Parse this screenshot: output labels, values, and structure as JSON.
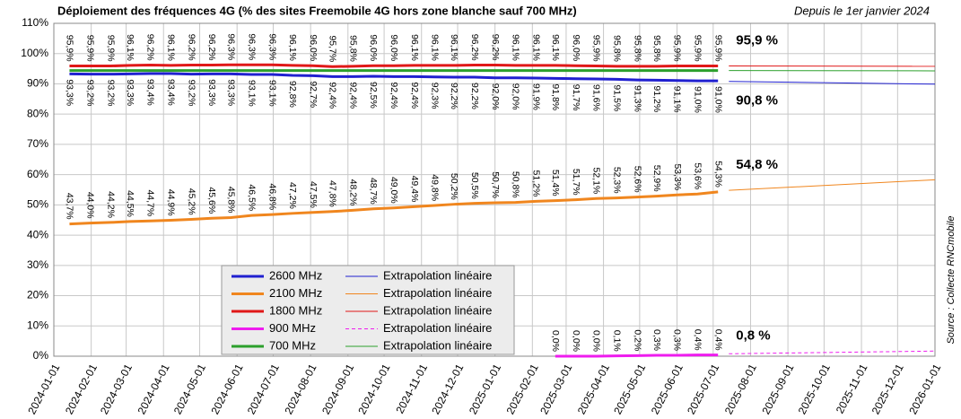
{
  "chart_data": {
    "type": "line",
    "title": "Déploiement des fréquences 4G (% des sites Freemobile 4G hors zone blanche sauf 700 MHz)",
    "subtitle": "Depuis le 1er janvier 2024",
    "source": "Source : Collecte RNCmobile",
    "grid": true,
    "xlim": [
      "2024-01-01",
      "2026-01-01"
    ],
    "xticks": [
      "2024-01-01",
      "2024-02-01",
      "2024-03-01",
      "2024-04-01",
      "2024-05-01",
      "2024-06-01",
      "2024-07-01",
      "2024-08-01",
      "2024-09-01",
      "2024-10-01",
      "2024-11-01",
      "2024-12-01",
      "2025-01-01",
      "2025-02-01",
      "2025-03-01",
      "2025-04-01",
      "2025-05-01",
      "2025-06-01",
      "2025-07-01",
      "2025-08-01",
      "2025-09-01",
      "2025-10-01",
      "2025-11-01",
      "2025-12-01",
      "2026-01-01"
    ],
    "ylim": [
      0,
      110
    ],
    "yticks": [
      {
        "value": 0,
        "label": "0%"
      },
      {
        "value": 10,
        "label": "10%"
      },
      {
        "value": 20,
        "label": "20%"
      },
      {
        "value": 30,
        "label": "30%"
      },
      {
        "value": 40,
        "label": "40%"
      },
      {
        "value": 50,
        "label": "50%"
      },
      {
        "value": 60,
        "label": "60%"
      },
      {
        "value": 70,
        "label": "70%"
      },
      {
        "value": 80,
        "label": "80%"
      },
      {
        "value": 90,
        "label": "90%"
      },
      {
        "value": 100,
        "label": "100%"
      },
      {
        "value": 110,
        "label": "110%"
      }
    ],
    "x": [
      "2024-01-14",
      "2024-01-31",
      "2024-02-17",
      "2024-03-04",
      "2024-03-21",
      "2024-04-07",
      "2024-04-24",
      "2024-05-11",
      "2024-05-27",
      "2024-06-13",
      "2024-06-30",
      "2024-07-17",
      "2024-08-03",
      "2024-08-19",
      "2024-09-05",
      "2024-09-22",
      "2024-10-09",
      "2024-10-26",
      "2024-11-12",
      "2024-11-28",
      "2024-12-15",
      "2025-01-01",
      "2025-01-18",
      "2025-02-04",
      "2025-02-20",
      "2025-03-09",
      "2025-03-26",
      "2025-04-12",
      "2025-04-29",
      "2025-05-15",
      "2025-06-01",
      "2025-06-18",
      "2025-07-05"
    ],
    "series": [
      {
        "name": "2600 MHz",
        "color": "#2020d0",
        "values": [
          93.3,
          93.2,
          93.2,
          93.3,
          93.4,
          93.4,
          93.2,
          93.3,
          93.3,
          93.1,
          93.1,
          92.8,
          92.7,
          92.4,
          92.4,
          92.5,
          92.4,
          92.4,
          92.3,
          92.2,
          92.2,
          92.0,
          92.0,
          91.9,
          91.8,
          91.7,
          91.6,
          91.5,
          91.3,
          91.2,
          91.1,
          91.0,
          91.0
        ],
        "value_labels": [
          "93,3%",
          "93,2%",
          "93,2%",
          "93,3%",
          "93,4%",
          "93,4%",
          "93,2%",
          "93,3%",
          "93,3%",
          "93,1%",
          "93,1%",
          "92,8%",
          "92,7%",
          "92,4%",
          "92,4%",
          "92,5%",
          "92,4%",
          "92,4%",
          "92,3%",
          "92,2%",
          "92,2%",
          "92,0%",
          "92,0%",
          "91,9%",
          "91,8%",
          "91,7%",
          "91,6%",
          "91,5%",
          "91,3%",
          "91,2%",
          "91,1%",
          "91,0%",
          "91,0%"
        ]
      },
      {
        "name": "Extrapolation linéaire",
        "color": "#2020d0",
        "x": [
          "2025-07-14",
          "2026-01-01"
        ],
        "values": [
          90.8,
          89.9
        ],
        "value_labels": [
          "90,8 %",
          null
        ]
      },
      {
        "name": "2100 MHz",
        "color": "#f0861e",
        "values": [
          43.7,
          44.0,
          44.2,
          44.5,
          44.7,
          44.9,
          45.2,
          45.6,
          45.8,
          46.5,
          46.8,
          47.2,
          47.5,
          47.8,
          48.2,
          48.7,
          49.0,
          49.4,
          49.8,
          50.2,
          50.5,
          50.7,
          50.8,
          51.2,
          51.4,
          51.7,
          52.1,
          52.3,
          52.6,
          52.9,
          53.3,
          53.6,
          54.3
        ],
        "value_labels": [
          "43,7%",
          "44,0%",
          "44,2%",
          "44,5%",
          "44,7%",
          "44,9%",
          "45,2%",
          "45,6%",
          "45,8%",
          "46,5%",
          "46,8%",
          "47,2%",
          "47,5%",
          "47,8%",
          "48,2%",
          "48,7%",
          "49,0%",
          "49,4%",
          "49,8%",
          "50,2%",
          "50,5%",
          "50,7%",
          "50,8%",
          "51,2%",
          "51,4%",
          "51,7%",
          "52,1%",
          "52,3%",
          "52,6%",
          "52,9%",
          "53,3%",
          "53,6%",
          "54,3%"
        ]
      },
      {
        "name": "Extrapolation linéaire",
        "color": "#f0861e",
        "x": [
          "2025-07-14",
          "2026-01-01"
        ],
        "values": [
          54.8,
          58.3
        ],
        "value_labels": [
          "54,8 %",
          null
        ]
      },
      {
        "name": "1800 MHz",
        "color": "#e01818",
        "values": [
          95.9,
          95.9,
          95.9,
          96.1,
          96.2,
          96.1,
          96.2,
          96.2,
          96.3,
          96.3,
          96.3,
          96.1,
          96.0,
          95.7,
          95.8,
          96.0,
          96.0,
          96.1,
          96.1,
          96.1,
          96.2,
          96.2,
          96.1,
          96.1,
          96.1,
          96.0,
          95.9,
          95.8,
          95.8,
          95.8,
          95.9,
          95.9,
          95.9
        ],
        "value_labels": [
          "95,9%",
          "95,9%",
          "95,9%",
          "96,1%",
          "96,2%",
          "96,1%",
          "96,2%",
          "96,2%",
          "96,3%",
          "96,3%",
          "96,3%",
          "96,1%",
          "96,0%",
          "95,7%",
          "95,8%",
          "96,0%",
          "96,0%",
          "96,1%",
          "96,1%",
          "96,1%",
          "96,2%",
          "96,2%",
          "96,1%",
          "96,1%",
          "96,1%",
          "96,0%",
          "95,9%",
          "95,8%",
          "95,8%",
          "95,8%",
          "95,9%",
          "95,9%",
          "95,9%"
        ]
      },
      {
        "name": "Extrapolation linéaire",
        "color": "#e01818",
        "x": [
          "2025-07-14",
          "2026-01-01"
        ],
        "values": [
          95.9,
          95.8
        ],
        "value_labels": [
          "95,9 %",
          null
        ]
      },
      {
        "name": "900 MHz",
        "color": "#ee1cee",
        "values": [
          null,
          null,
          null,
          null,
          null,
          null,
          null,
          null,
          null,
          null,
          null,
          null,
          null,
          null,
          null,
          null,
          null,
          null,
          null,
          null,
          null,
          null,
          null,
          null,
          0,
          0,
          0,
          0.1,
          0.2,
          0.3,
          0.3,
          0.4,
          0.4
        ],
        "value_labels": [
          null,
          null,
          null,
          null,
          null,
          null,
          null,
          null,
          null,
          null,
          null,
          null,
          null,
          null,
          null,
          null,
          null,
          null,
          null,
          null,
          null,
          null,
          null,
          null,
          "0,0%",
          "0,0%",
          "0,0%",
          "0,1%",
          "0,2%",
          "0,3%",
          "0,3%",
          "0,4%",
          "0,4%"
        ]
      },
      {
        "name": "Extrapolation linéaire",
        "color": "#ee1cee",
        "dashed": true,
        "x": [
          "2025-07-14",
          "2026-01-01"
        ],
        "values": [
          0.8,
          1.7
        ],
        "value_labels": [
          "0,8 %",
          null
        ]
      },
      {
        "name": "700 MHz",
        "color": "#2ca02c",
        "values": [
          94.4,
          94.4,
          94.4,
          94.4,
          94.4,
          94.4,
          94.4,
          94.4,
          94.4,
          94.4,
          94.4,
          94.4,
          94.4,
          94.4,
          94.4,
          94.4,
          94.4,
          94.4,
          94.4,
          94.4,
          94.4,
          94.4,
          94.4,
          94.4,
          94.4,
          94.4,
          94.4,
          94.4,
          94.4,
          94.4,
          94.4,
          94.4,
          94.4
        ]
      },
      {
        "name": "Extrapolation linéaire",
        "color": "#2ca02c",
        "x": [
          "2025-07-14",
          "2026-01-01"
        ],
        "values": [
          94.4,
          94.3
        ]
      }
    ]
  }
}
